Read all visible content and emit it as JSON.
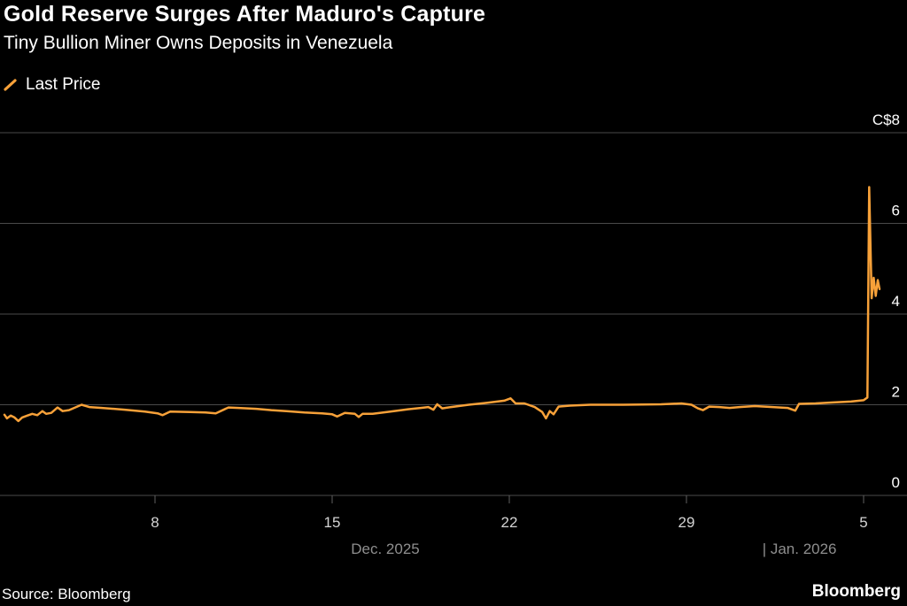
{
  "colors": {
    "background": "#000000",
    "line": "#f7a139",
    "grid": "#4a4a4a",
    "axis_text": "#d4d4d4",
    "month_text": "#8e8e8e",
    "label_text": "#ffffff"
  },
  "footer": {
    "source": "Source: Bloomberg",
    "brand": "Bloomberg"
  },
  "chart_data": {
    "type": "line",
    "title": "Gold Reserve Surges After Maduro's Capture",
    "subtitle": "Tiny Bullion Miner Owns Deposits in Venezuela",
    "legend_position": "top-left",
    "grid": true,
    "y_axis": {
      "side": "right",
      "range": [
        0,
        8
      ],
      "currency_prefix": "C$",
      "ticks": [
        {
          "value": 8,
          "label": "C$8"
        },
        {
          "value": 6,
          "label": "6"
        },
        {
          "value": 4,
          "label": "4"
        },
        {
          "value": 2,
          "label": "2"
        },
        {
          "value": 0,
          "label": "0"
        }
      ]
    },
    "x_axis": {
      "unit": "day index, Dec 1 2025 = 1 (Jan 5 2026 = 36)",
      "ticks": [
        {
          "day": 8,
          "label": "8"
        },
        {
          "day": 15,
          "label": "15"
        },
        {
          "day": 22,
          "label": "22"
        },
        {
          "day": 29,
          "label": "29"
        },
        {
          "day": 36,
          "label": "5"
        }
      ],
      "month_labels": [
        {
          "label": "Dec. 2025",
          "anchor_day": 17.1,
          "align": "middle"
        },
        {
          "label": "| Jan. 2026",
          "anchor_day": 32.0,
          "align": "start"
        }
      ]
    },
    "series": [
      {
        "name": "Last Price",
        "color": "#f7a139",
        "points": [
          [
            2.05,
            1.78
          ],
          [
            2.15,
            1.7
          ],
          [
            2.3,
            1.76
          ],
          [
            2.45,
            1.72
          ],
          [
            2.6,
            1.64
          ],
          [
            2.75,
            1.72
          ],
          [
            2.95,
            1.76
          ],
          [
            3.15,
            1.8
          ],
          [
            3.35,
            1.77
          ],
          [
            3.55,
            1.86
          ],
          [
            3.7,
            1.8
          ],
          [
            3.9,
            1.82
          ],
          [
            4.15,
            1.94
          ],
          [
            4.35,
            1.86
          ],
          [
            4.6,
            1.88
          ],
          [
            5.1,
            2.0
          ],
          [
            5.4,
            1.95
          ],
          [
            5.9,
            1.93
          ],
          [
            6.8,
            1.89
          ],
          [
            7.6,
            1.85
          ],
          [
            8.1,
            1.81
          ],
          [
            8.3,
            1.77
          ],
          [
            8.6,
            1.85
          ],
          [
            9.4,
            1.84
          ],
          [
            10.0,
            1.83
          ],
          [
            10.4,
            1.81
          ],
          [
            10.9,
            1.94
          ],
          [
            11.3,
            1.93
          ],
          [
            12.0,
            1.91
          ],
          [
            12.6,
            1.88
          ],
          [
            13.2,
            1.86
          ],
          [
            13.9,
            1.83
          ],
          [
            14.6,
            1.81
          ],
          [
            15.0,
            1.79
          ],
          [
            15.2,
            1.74
          ],
          [
            15.5,
            1.82
          ],
          [
            15.9,
            1.8
          ],
          [
            16.05,
            1.73
          ],
          [
            16.2,
            1.8
          ],
          [
            16.6,
            1.8
          ],
          [
            17.3,
            1.85
          ],
          [
            18.0,
            1.9
          ],
          [
            18.5,
            1.93
          ],
          [
            18.8,
            1.95
          ],
          [
            19.0,
            1.89
          ],
          [
            19.15,
            2.01
          ],
          [
            19.35,
            1.92
          ],
          [
            19.7,
            1.95
          ],
          [
            20.4,
            2.0
          ],
          [
            21.1,
            2.04
          ],
          [
            21.8,
            2.09
          ],
          [
            22.05,
            2.14
          ],
          [
            22.25,
            2.03
          ],
          [
            22.6,
            2.03
          ],
          [
            23.0,
            1.95
          ],
          [
            23.3,
            1.84
          ],
          [
            23.45,
            1.7
          ],
          [
            23.6,
            1.86
          ],
          [
            23.75,
            1.79
          ],
          [
            23.95,
            1.96
          ],
          [
            24.4,
            1.98
          ],
          [
            25.2,
            2.0
          ],
          [
            26.5,
            2.0
          ],
          [
            28.0,
            2.01
          ],
          [
            28.8,
            2.03
          ],
          [
            29.2,
            2.0
          ],
          [
            29.45,
            1.92
          ],
          [
            29.65,
            1.88
          ],
          [
            29.9,
            1.96
          ],
          [
            30.3,
            1.95
          ],
          [
            30.7,
            1.93
          ],
          [
            31.1,
            1.95
          ],
          [
            31.7,
            1.97
          ],
          [
            32.4,
            1.95
          ],
          [
            33.0,
            1.93
          ],
          [
            33.3,
            1.87
          ],
          [
            33.45,
            2.02
          ],
          [
            34.1,
            2.03
          ],
          [
            34.8,
            2.05
          ],
          [
            35.5,
            2.07
          ],
          [
            36.0,
            2.1
          ],
          [
            36.15,
            2.16
          ],
          [
            36.22,
            6.8
          ],
          [
            36.32,
            4.35
          ],
          [
            36.4,
            4.8
          ],
          [
            36.48,
            4.4
          ],
          [
            36.56,
            4.75
          ],
          [
            36.63,
            4.55
          ]
        ]
      }
    ]
  }
}
